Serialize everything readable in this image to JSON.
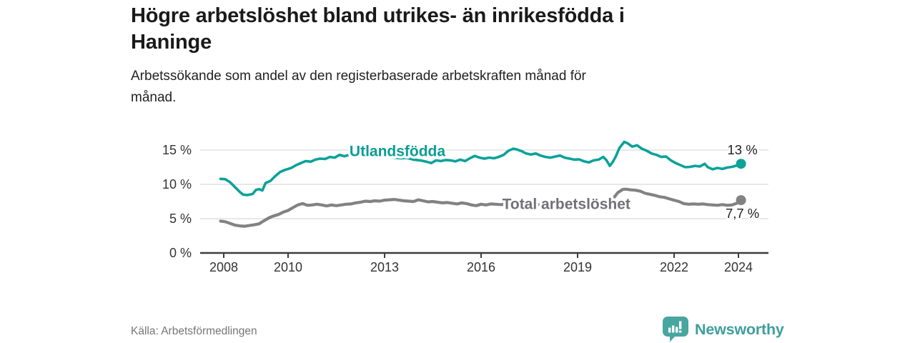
{
  "header": {
    "title_lines": [
      "Högre arbetslöshet bland utrikes- än inrikesfödda i",
      "Haninge"
    ],
    "subtitle_lines": [
      "Arbetssökande som andel av den registerbaserade arbetskraften månad för",
      "månad."
    ]
  },
  "footer": {
    "source": "Källa: Arbetsförmedlingen",
    "brand": {
      "name": "Newsworthy",
      "icon": "bar-chart-speech-bubble-icon",
      "icon_color": "#47a69f",
      "wordmark_color": "#3f9e9d"
    }
  },
  "colors": {
    "title": "#1a1a1a",
    "subtitle": "#222222",
    "grid": "#d9d9d9",
    "axis": "#3d3d3d",
    "tick_label": "#333333",
    "end_label": "#1f1f1f",
    "background": "#ffffff"
  },
  "chart_data": {
    "type": "line",
    "title": "Högre arbetslöshet bland utrikes- än inrikesfödda i Haninge",
    "subtitle": "Arbetssökande som andel av den registerbaserade arbetskraften månad för månad.",
    "unit": "%",
    "grid": true,
    "legend_position": "inline-on-lines",
    "xlim": [
      2007.85,
      2024.95
    ],
    "ylim": [
      0,
      18
    ],
    "x_ticks": [
      {
        "value": 2008,
        "label": "2008"
      },
      {
        "value": 2010,
        "label": "2010"
      },
      {
        "value": 2013,
        "label": "2013"
      },
      {
        "value": 2016,
        "label": "2016"
      },
      {
        "value": 2019,
        "label": "2019"
      },
      {
        "value": 2022,
        "label": "2022"
      },
      {
        "value": 2024,
        "label": "2024"
      }
    ],
    "y_ticks": [
      {
        "value": 15,
        "label": "15 %"
      },
      {
        "value": 10,
        "label": "10 %"
      },
      {
        "value": 5,
        "label": "5 %"
      },
      {
        "value": 0,
        "label": "0 %"
      }
    ],
    "series": [
      {
        "name": "Utlandsfödda",
        "color": "#0ba29a",
        "label_color": "#0b9d96",
        "line_width": 3.6,
        "label_pos": {
          "x": 2013.4,
          "y": 14.85
        },
        "end_value": 13.0,
        "end_label": "13 %",
        "points": [
          [
            2007.9,
            10.8
          ],
          [
            2008.05,
            10.75
          ],
          [
            2008.2,
            10.3
          ],
          [
            2008.35,
            9.6
          ],
          [
            2008.5,
            8.9
          ],
          [
            2008.6,
            8.5
          ],
          [
            2008.75,
            8.45
          ],
          [
            2008.9,
            8.6
          ],
          [
            2009.0,
            9.2
          ],
          [
            2009.1,
            9.3
          ],
          [
            2009.2,
            9.1
          ],
          [
            2009.3,
            10.2
          ],
          [
            2009.45,
            10.5
          ],
          [
            2009.6,
            11.2
          ],
          [
            2009.75,
            11.8
          ],
          [
            2009.9,
            12.1
          ],
          [
            2010.1,
            12.4
          ],
          [
            2010.25,
            12.8
          ],
          [
            2010.4,
            13.1
          ],
          [
            2010.55,
            13.4
          ],
          [
            2010.7,
            13.3
          ],
          [
            2010.85,
            13.6
          ],
          [
            2011.0,
            13.75
          ],
          [
            2011.15,
            13.7
          ],
          [
            2011.3,
            14.0
          ],
          [
            2011.45,
            13.9
          ],
          [
            2011.6,
            14.3
          ],
          [
            2011.75,
            14.1
          ],
          [
            2011.9,
            14.3
          ],
          [
            2012.1,
            14.5
          ],
          [
            2012.3,
            14.6
          ],
          [
            2012.5,
            14.4
          ],
          [
            2012.7,
            14.25
          ],
          [
            2012.9,
            14.3
          ],
          [
            2013.1,
            14.05
          ],
          [
            2013.3,
            13.9
          ],
          [
            2013.5,
            13.8
          ],
          [
            2013.7,
            13.85
          ],
          [
            2013.9,
            13.6
          ],
          [
            2014.1,
            13.5
          ],
          [
            2014.3,
            13.3
          ],
          [
            2014.45,
            13.1
          ],
          [
            2014.6,
            13.5
          ],
          [
            2014.75,
            13.4
          ],
          [
            2014.9,
            13.55
          ],
          [
            2015.05,
            13.5
          ],
          [
            2015.2,
            13.35
          ],
          [
            2015.35,
            13.6
          ],
          [
            2015.5,
            13.4
          ],
          [
            2015.65,
            13.8
          ],
          [
            2015.8,
            14.15
          ],
          [
            2015.95,
            13.9
          ],
          [
            2016.1,
            13.75
          ],
          [
            2016.25,
            13.9
          ],
          [
            2016.4,
            13.8
          ],
          [
            2016.55,
            14.0
          ],
          [
            2016.7,
            14.3
          ],
          [
            2016.85,
            14.9
          ],
          [
            2017.0,
            15.2
          ],
          [
            2017.1,
            15.1
          ],
          [
            2017.25,
            14.85
          ],
          [
            2017.4,
            14.5
          ],
          [
            2017.55,
            14.35
          ],
          [
            2017.7,
            14.5
          ],
          [
            2017.85,
            14.2
          ],
          [
            2018.0,
            14.0
          ],
          [
            2018.15,
            13.9
          ],
          [
            2018.3,
            14.05
          ],
          [
            2018.45,
            14.2
          ],
          [
            2018.6,
            13.9
          ],
          [
            2018.75,
            13.75
          ],
          [
            2018.9,
            13.6
          ],
          [
            2019.05,
            13.65
          ],
          [
            2019.2,
            13.35
          ],
          [
            2019.35,
            13.2
          ],
          [
            2019.5,
            13.5
          ],
          [
            2019.65,
            13.6
          ],
          [
            2019.8,
            14.0
          ],
          [
            2019.9,
            13.5
          ],
          [
            2020.0,
            12.7
          ],
          [
            2020.1,
            13.3
          ],
          [
            2020.2,
            14.2
          ],
          [
            2020.3,
            15.3
          ],
          [
            2020.45,
            16.2
          ],
          [
            2020.55,
            16.0
          ],
          [
            2020.7,
            15.5
          ],
          [
            2020.85,
            15.7
          ],
          [
            2021.0,
            15.2
          ],
          [
            2021.15,
            14.9
          ],
          [
            2021.3,
            14.5
          ],
          [
            2021.45,
            14.3
          ],
          [
            2021.6,
            14.0
          ],
          [
            2021.75,
            14.05
          ],
          [
            2021.9,
            13.5
          ],
          [
            2022.05,
            13.1
          ],
          [
            2022.2,
            12.8
          ],
          [
            2022.35,
            12.5
          ],
          [
            2022.5,
            12.55
          ],
          [
            2022.65,
            12.7
          ],
          [
            2022.8,
            12.6
          ],
          [
            2022.95,
            13.0
          ],
          [
            2023.05,
            12.5
          ],
          [
            2023.2,
            12.2
          ],
          [
            2023.35,
            12.4
          ],
          [
            2023.5,
            12.25
          ],
          [
            2023.65,
            12.45
          ],
          [
            2023.8,
            12.55
          ],
          [
            2023.95,
            12.75
          ],
          [
            2024.08,
            13.0
          ]
        ]
      },
      {
        "name": "Total arbetslöshet",
        "color": "#828282",
        "label_color": "#717176",
        "line_width": 4.2,
        "label_pos": {
          "x": 2018.65,
          "y": 7.15
        },
        "end_value": 7.7,
        "end_label": "7,7 %",
        "points": [
          [
            2007.9,
            4.65
          ],
          [
            2008.05,
            4.55
          ],
          [
            2008.2,
            4.3
          ],
          [
            2008.35,
            4.05
          ],
          [
            2008.5,
            3.95
          ],
          [
            2008.65,
            3.9
          ],
          [
            2008.8,
            4.0
          ],
          [
            2008.95,
            4.1
          ],
          [
            2009.1,
            4.25
          ],
          [
            2009.25,
            4.7
          ],
          [
            2009.4,
            5.1
          ],
          [
            2009.55,
            5.4
          ],
          [
            2009.7,
            5.6
          ],
          [
            2009.85,
            5.95
          ],
          [
            2010.0,
            6.2
          ],
          [
            2010.15,
            6.6
          ],
          [
            2010.3,
            7.0
          ],
          [
            2010.45,
            7.2
          ],
          [
            2010.6,
            6.95
          ],
          [
            2010.75,
            7.0
          ],
          [
            2010.9,
            7.1
          ],
          [
            2011.05,
            7.0
          ],
          [
            2011.2,
            6.85
          ],
          [
            2011.35,
            7.0
          ],
          [
            2011.5,
            6.9
          ],
          [
            2011.65,
            7.0
          ],
          [
            2011.8,
            7.1
          ],
          [
            2011.95,
            7.15
          ],
          [
            2012.1,
            7.3
          ],
          [
            2012.25,
            7.4
          ],
          [
            2012.4,
            7.55
          ],
          [
            2012.55,
            7.5
          ],
          [
            2012.7,
            7.6
          ],
          [
            2012.85,
            7.55
          ],
          [
            2013.0,
            7.7
          ],
          [
            2013.15,
            7.75
          ],
          [
            2013.3,
            7.8
          ],
          [
            2013.45,
            7.7
          ],
          [
            2013.6,
            7.6
          ],
          [
            2013.75,
            7.55
          ],
          [
            2013.9,
            7.5
          ],
          [
            2014.05,
            7.75
          ],
          [
            2014.2,
            7.6
          ],
          [
            2014.35,
            7.45
          ],
          [
            2014.5,
            7.5
          ],
          [
            2014.65,
            7.4
          ],
          [
            2014.8,
            7.3
          ],
          [
            2014.95,
            7.35
          ],
          [
            2015.1,
            7.25
          ],
          [
            2015.25,
            7.15
          ],
          [
            2015.4,
            7.3
          ],
          [
            2015.55,
            7.2
          ],
          [
            2015.7,
            7.0
          ],
          [
            2015.85,
            6.9
          ],
          [
            2016.0,
            7.1
          ],
          [
            2016.15,
            7.0
          ],
          [
            2016.3,
            7.15
          ],
          [
            2016.45,
            7.1
          ],
          [
            2016.6,
            7.05
          ],
          [
            2016.8,
            7.1
          ],
          [
            2017.0,
            7.15
          ],
          [
            2017.2,
            7.05
          ],
          [
            2017.4,
            7.1
          ],
          [
            2017.6,
            7.0
          ],
          [
            2017.8,
            7.05
          ],
          [
            2018.0,
            7.1
          ],
          [
            2018.2,
            7.0
          ],
          [
            2018.4,
            7.05
          ],
          [
            2018.6,
            6.95
          ],
          [
            2018.8,
            7.0
          ],
          [
            2019.0,
            7.1
          ],
          [
            2019.2,
            7.0
          ],
          [
            2019.4,
            7.1
          ],
          [
            2019.6,
            7.05
          ],
          [
            2019.8,
            7.2
          ],
          [
            2019.95,
            7.3
          ],
          [
            2020.1,
            7.9
          ],
          [
            2020.25,
            8.8
          ],
          [
            2020.4,
            9.25
          ],
          [
            2020.5,
            9.3
          ],
          [
            2020.65,
            9.2
          ],
          [
            2020.8,
            9.15
          ],
          [
            2020.95,
            9.0
          ],
          [
            2021.1,
            8.7
          ],
          [
            2021.25,
            8.55
          ],
          [
            2021.4,
            8.4
          ],
          [
            2021.55,
            8.2
          ],
          [
            2021.7,
            8.1
          ],
          [
            2021.85,
            7.9
          ],
          [
            2022.0,
            7.7
          ],
          [
            2022.15,
            7.5
          ],
          [
            2022.3,
            7.2
          ],
          [
            2022.45,
            7.1
          ],
          [
            2022.6,
            7.15
          ],
          [
            2022.75,
            7.1
          ],
          [
            2022.9,
            7.15
          ],
          [
            2023.05,
            7.05
          ],
          [
            2023.2,
            7.0
          ],
          [
            2023.35,
            6.95
          ],
          [
            2023.5,
            7.05
          ],
          [
            2023.65,
            6.95
          ],
          [
            2023.8,
            7.0
          ],
          [
            2023.95,
            7.25
          ],
          [
            2024.08,
            7.7
          ]
        ]
      }
    ]
  }
}
